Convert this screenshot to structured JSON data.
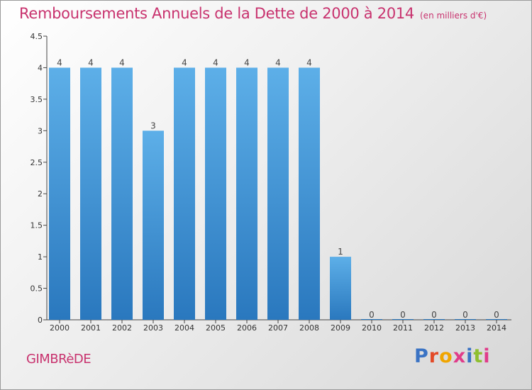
{
  "header": {
    "title": "Remboursements Annuels de la Dette de 2000 à 2014",
    "subtitle": "(en milliers d'€)"
  },
  "footer": {
    "commune": "GIMBRèDE",
    "logo_text": "Proxiti"
  },
  "colors": {
    "accent": "#c8326e",
    "bar_top": "#5dafe8",
    "bar_bottom": "#2a78be",
    "logo_letters": [
      "#3a73c4",
      "#e34a27",
      "#f0a500",
      "#e03c8a",
      "#3a73c4",
      "#8fbf2f",
      "#e03c8a"
    ]
  },
  "chart_data": {
    "type": "bar",
    "title": "Remboursements Annuels de la Dette de 2000 à 2014",
    "subtitle": "(en milliers d'€)",
    "categories": [
      "2000",
      "2001",
      "2002",
      "2003",
      "2004",
      "2005",
      "2006",
      "2007",
      "2008",
      "2009",
      "2010",
      "2011",
      "2012",
      "2013",
      "2014"
    ],
    "values": [
      4,
      4,
      4,
      3,
      4,
      4,
      4,
      4,
      4,
      1,
      0,
      0,
      0,
      0,
      0
    ],
    "y_ticks": [
      "0",
      "0.5",
      "1",
      "1.5",
      "2",
      "2.5",
      "3",
      "3.5",
      "4",
      "4.5"
    ],
    "ylim": [
      0,
      4.5
    ],
    "xlabel": "",
    "ylabel": "",
    "grid": false,
    "legend": "none"
  }
}
